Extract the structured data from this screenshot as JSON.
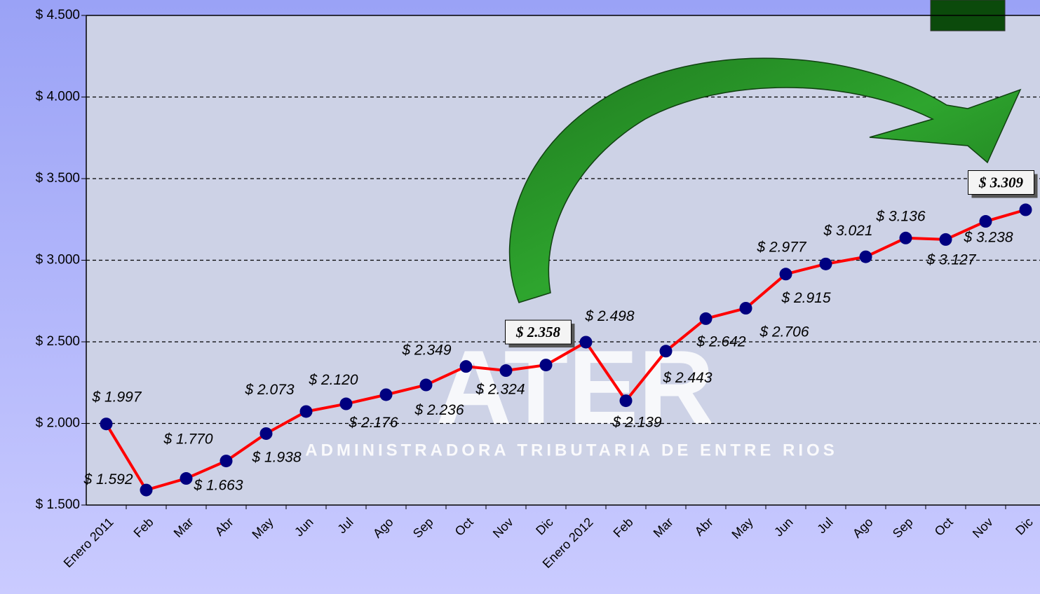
{
  "chart_data": {
    "type": "line",
    "categories": [
      "Enero 2011",
      "Feb",
      "Mar",
      "Abr",
      "May",
      "Jun",
      "Jul",
      "Ago",
      "Sep",
      "Oct",
      "Nov",
      "Dic",
      "Enero 2012",
      "Feb",
      "Mar",
      "Abr",
      "May",
      "Jun",
      "Jul",
      "Ago",
      "Sep",
      "Oct",
      "Nov",
      "Dic"
    ],
    "series": [
      {
        "color": "#ff0000",
        "marker_color": "#000080",
        "values": [
          1997,
          1592,
          1663,
          1770,
          1938,
          2073,
          2120,
          2176,
          2236,
          2349,
          2324,
          2358,
          2498,
          2139,
          2443,
          2642,
          2706,
          2915,
          2977,
          3021,
          3136,
          3127,
          3238,
          3309
        ],
        "value_labels": [
          "$ 1.997",
          "$ 1.592",
          "$ 1.663",
          "$ 1.770",
          "$ 1.938",
          "$ 2.073",
          "$ 2.120",
          "$ 2.176",
          "$ 2.236",
          "$ 2.349",
          "$ 2.324",
          "$ 2.358",
          "$ 2.498",
          "$ 2.139",
          "$ 2.443",
          "$ 2.642",
          "$ 2.706",
          "$ 2.915",
          "$ 2.977",
          "$ 3.021",
          "$ 3.136",
          "$ 3.127",
          "$ 3.238",
          "$ 3.309"
        ]
      }
    ],
    "highlighted": [
      11,
      23
    ],
    "ylim": [
      1500,
      4500
    ],
    "yticks": [
      {
        "value": 1500,
        "label": "$ 1.500"
      },
      {
        "value": 2000,
        "label": "$ 2.000"
      },
      {
        "value": 2500,
        "label": "$ 2.500"
      },
      {
        "value": 3000,
        "label": "$ 3.000"
      },
      {
        "value": 3500,
        "label": "$ 3.500"
      },
      {
        "value": 4000,
        "label": "$ 4.000"
      },
      {
        "value": 4500,
        "label": "$ 4.500"
      }
    ],
    "grid": true,
    "watermark": {
      "title": "ATER",
      "subtitle": "ADMINISTRADORA TRIBUTARIA DE ENTRE RIOS"
    }
  }
}
